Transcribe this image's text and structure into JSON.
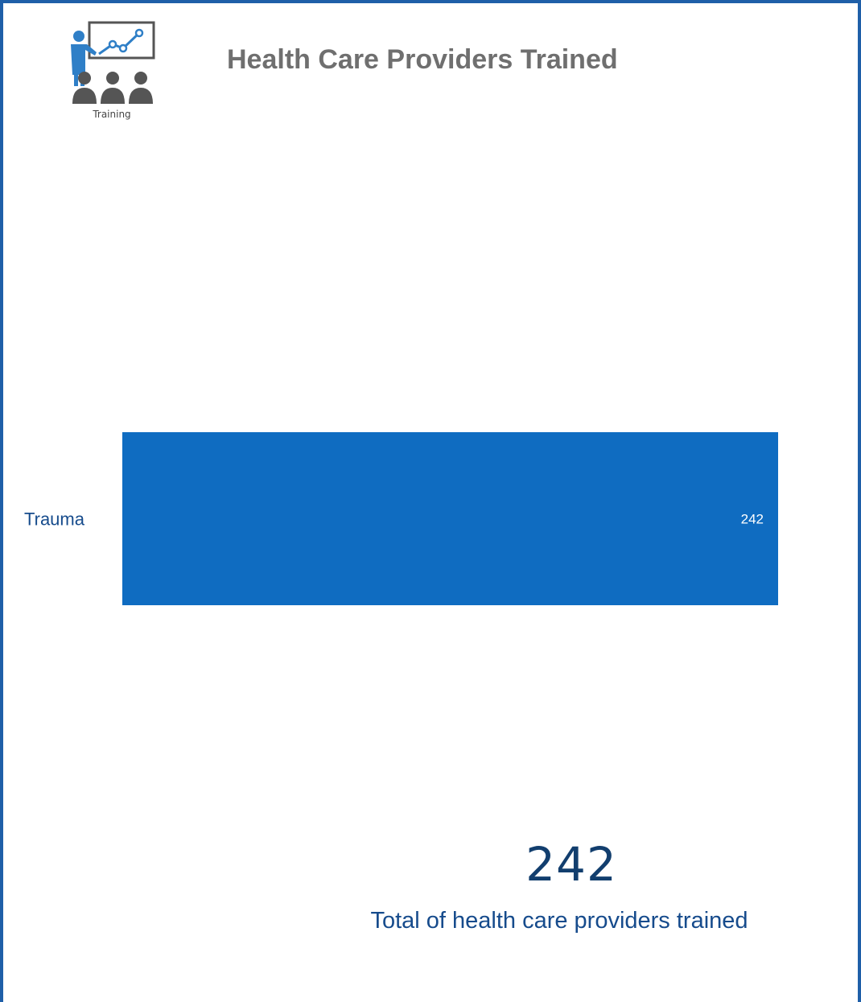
{
  "logo": {
    "caption": "Training",
    "icon": "training-presentation-icon"
  },
  "title": "Health Care Providers Trained",
  "colors": {
    "bar": "#0f6cc1",
    "frame": "#1f5fa8",
    "category_label": "#164b8c",
    "kpi": "#123e6e"
  },
  "chart_data": {
    "type": "bar",
    "orientation": "horizontal",
    "categories": [
      "Trauma"
    ],
    "values": [
      242
    ],
    "data_labels": [
      "242"
    ],
    "xlim": [
      0,
      242
    ]
  },
  "kpi": {
    "value": "242",
    "label": "Total of health care providers trained"
  }
}
